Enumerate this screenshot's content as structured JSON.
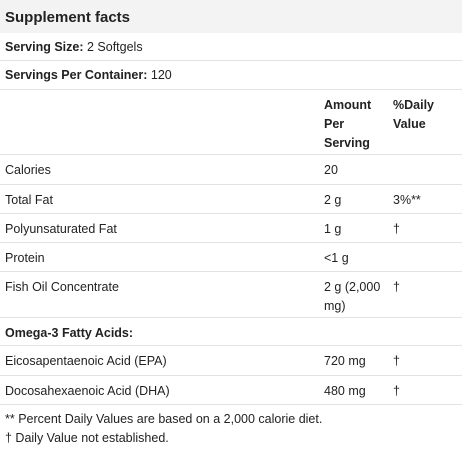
{
  "title": "Supplement facts",
  "serving_size": {
    "label": "Serving Size:",
    "value": "2 Softgels"
  },
  "servings_per_container": {
    "label": "Servings Per Container:",
    "value": "120"
  },
  "table": {
    "header": {
      "amount": "Amount Per Serving",
      "daily_value": "%Daily Value"
    },
    "rows": [
      {
        "name": "Calories",
        "amount": "20"
      },
      {
        "name": "Total Fat",
        "amount": "2 g",
        "daily_value": "3%**"
      },
      {
        "name": "Polyunsaturated Fat",
        "amount": "1 g",
        "daily_value": "†"
      },
      {
        "name": "Protein",
        "amount": "<1 g"
      },
      {
        "name": "Fish Oil Concentrate",
        "amount": "2 g (2,000 mg)",
        "daily_value": "†"
      },
      {
        "section": "Omega-3 Fatty Acids:"
      },
      {
        "name": "Eicosapentaenoic Acid (EPA)",
        "amount": "720 mg",
        "daily_value": "†"
      },
      {
        "name": "Docosahexaenoic Acid (DHA)",
        "amount": "480 mg",
        "daily_value": "†"
      }
    ]
  },
  "footnotes": [
    "** Percent Daily Values are based on a 2,000 calorie diet.",
    "† Daily Value not established."
  ]
}
